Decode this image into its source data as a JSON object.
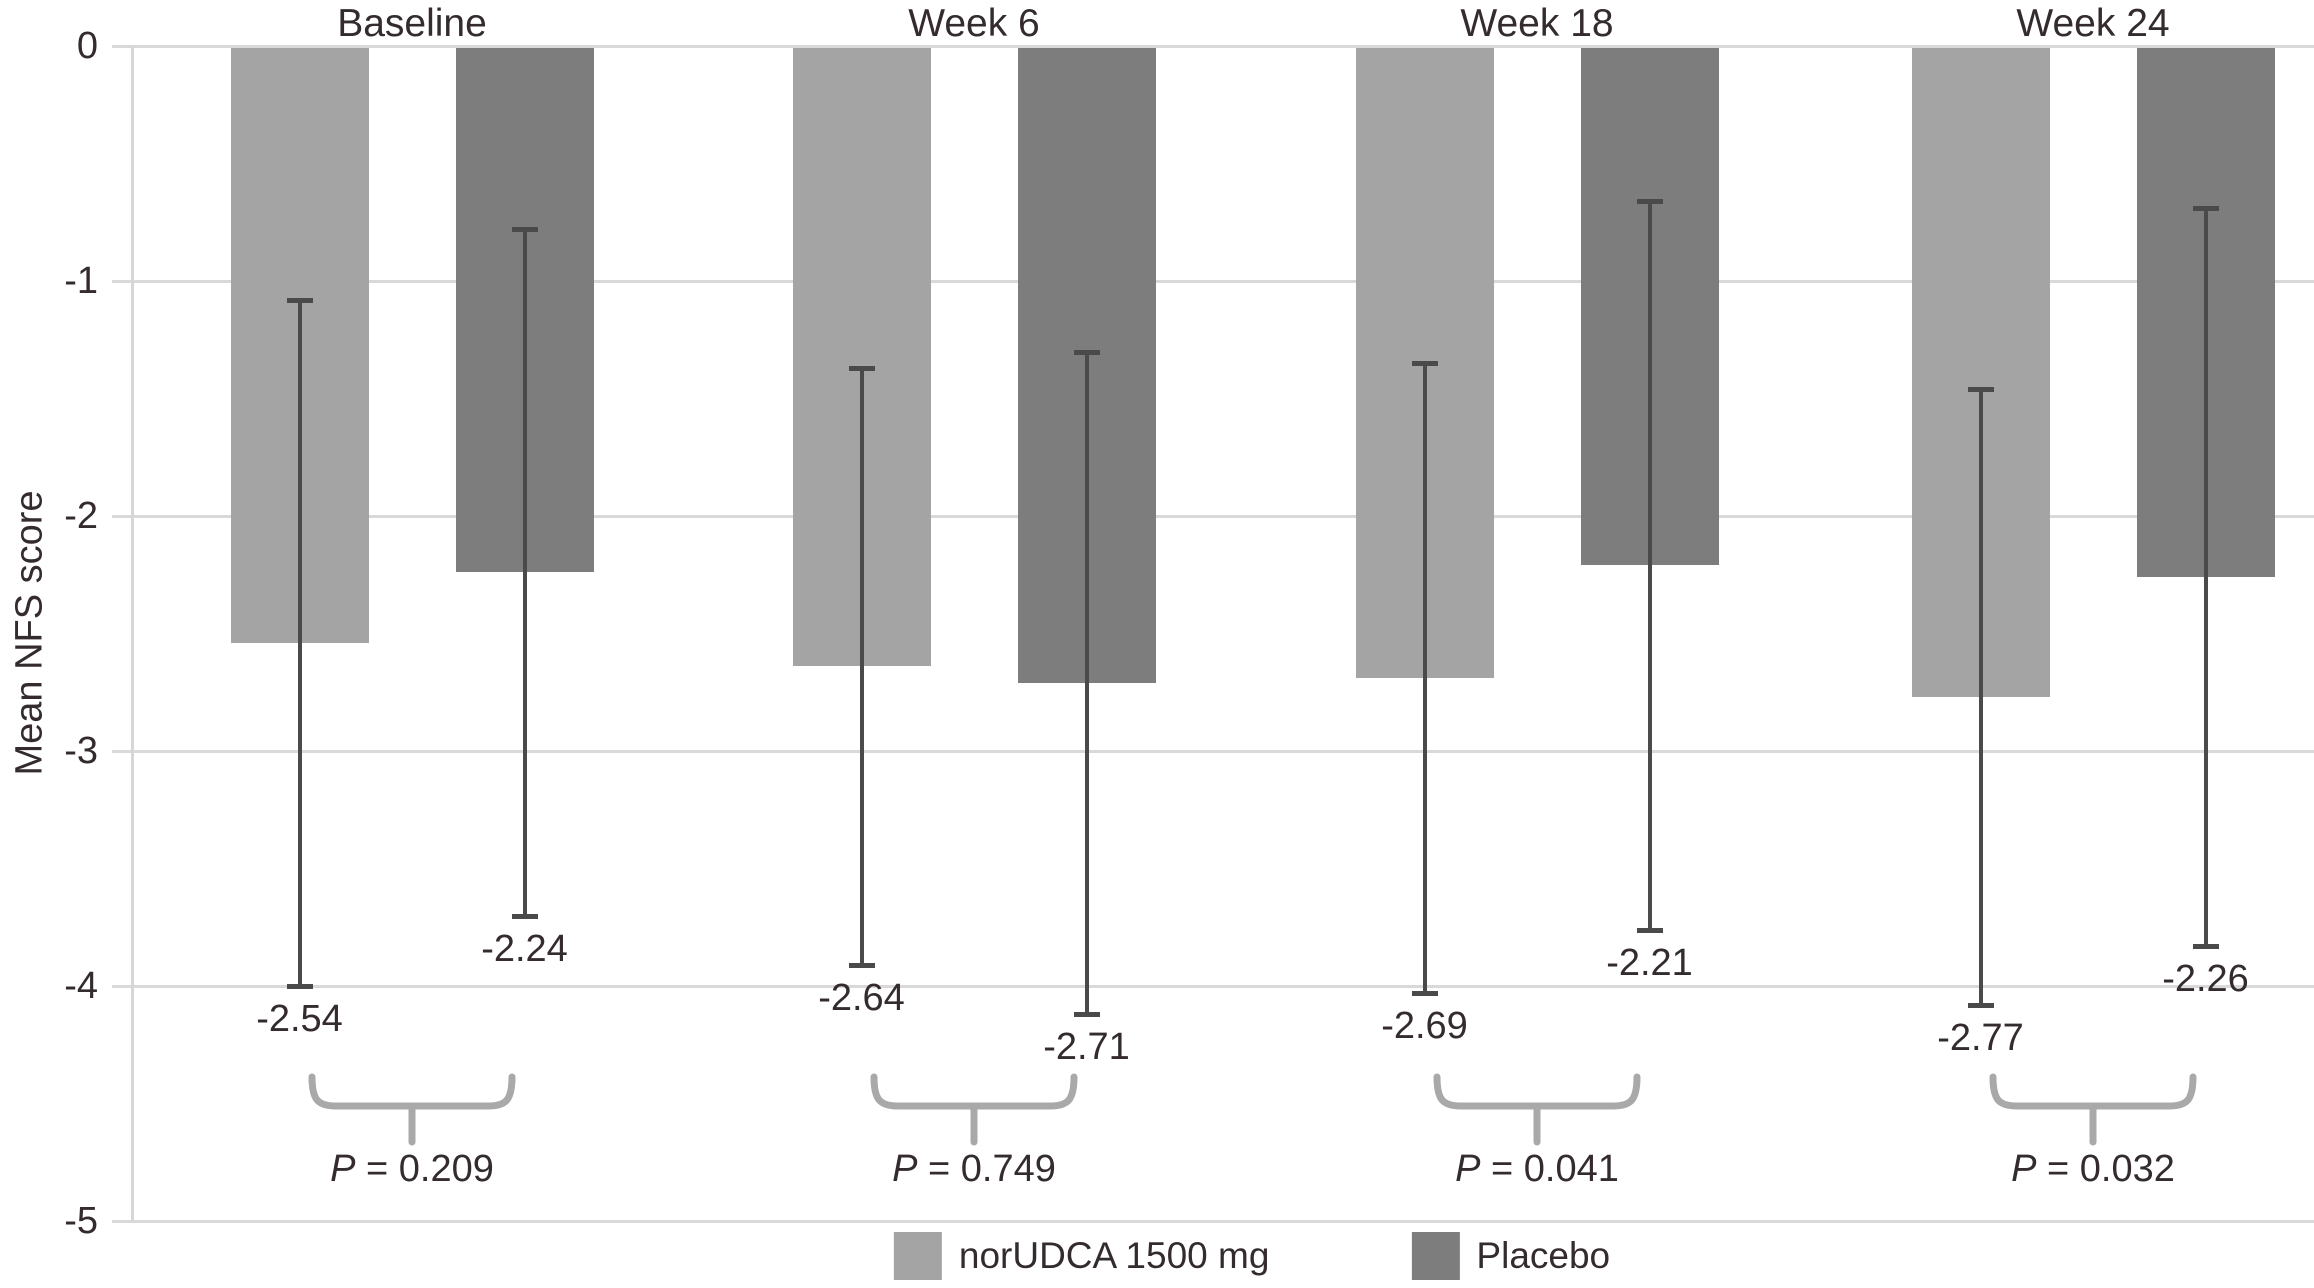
{
  "chart_data": {
    "type": "bar",
    "title": "",
    "ylabel": "Mean NFS score",
    "categories": [
      "Baseline",
      "Week 6",
      "Week 18",
      "Week 24"
    ],
    "series": [
      {
        "name": "norUDCA 1500 mg",
        "color": "#a4a4a4",
        "values": [
          -2.54,
          -2.64,
          -2.69,
          -2.77
        ],
        "value_labels": [
          "-2.54",
          "-2.64",
          "-2.69",
          "-2.77"
        ],
        "error": [
          1.46,
          1.27,
          1.34,
          1.31
        ]
      },
      {
        "name": "Placebo",
        "color": "#7d7d7d",
        "values": [
          -2.24,
          -2.71,
          -2.21,
          -2.26
        ],
        "value_labels": [
          "-2.24",
          "-2.71",
          "-2.21",
          "-2.26"
        ],
        "error": [
          1.46,
          1.41,
          1.55,
          1.57
        ]
      }
    ],
    "p_values": [
      {
        "sym": "P",
        "rest": " = 0.209"
      },
      {
        "sym": "P",
        "rest": " = 0.749"
      },
      {
        "sym": "P",
        "rest": " = 0.041"
      },
      {
        "sym": "P",
        "rest": " = 0.032"
      }
    ],
    "yticks": [
      0,
      -1,
      -2,
      -3,
      -4,
      -5
    ],
    "ytick_labels": [
      "0",
      "-1",
      "-2",
      "-3",
      "-4",
      "-5"
    ],
    "ylim": [
      0,
      -5
    ],
    "grid": true,
    "legend_position": "bottom",
    "error_bars": "symmetric"
  },
  "colors": {
    "gridline": "#d9d9d9",
    "axis_line": "#d6d6d6",
    "error_bar": "#4a4a4a",
    "bracket": "#a9a9a9",
    "text": "#332b2d",
    "background": "#ffffff"
  }
}
